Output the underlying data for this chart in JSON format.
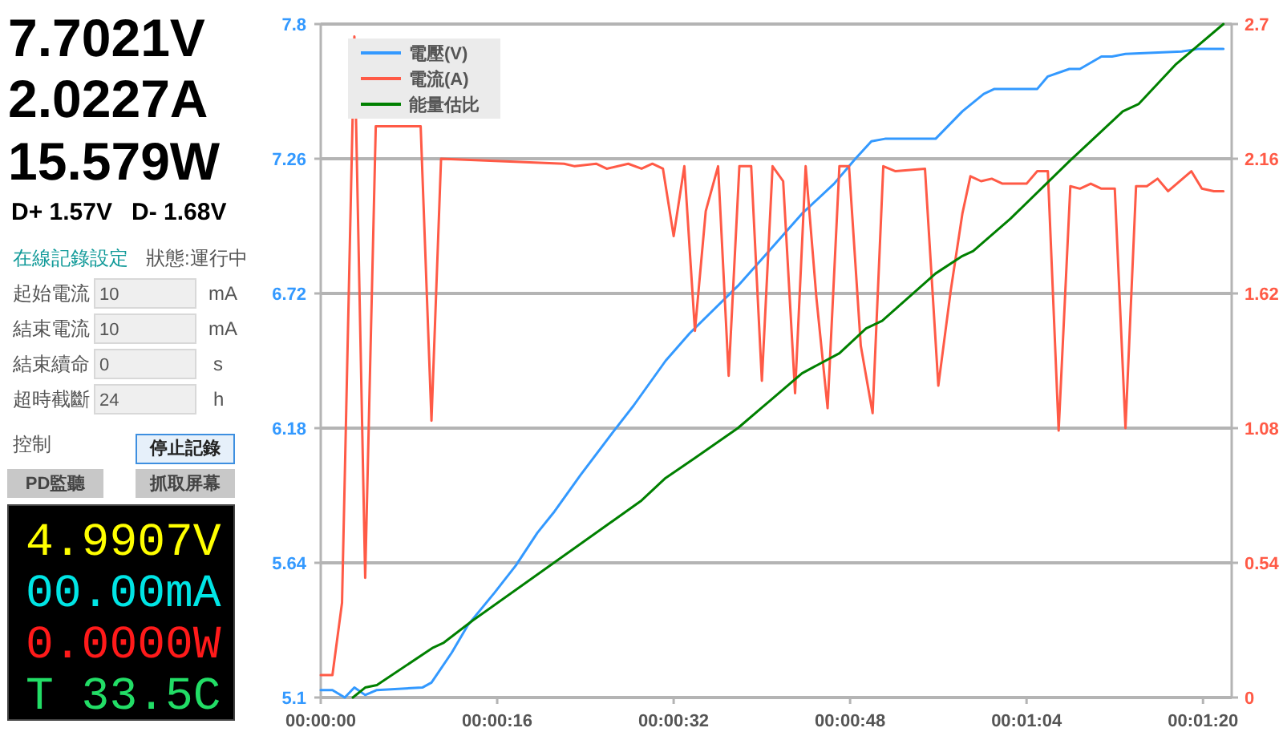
{
  "chart_data": [
    {
      "type": "other",
      "annotations": [
        "7.7021V",
        "2.0227A",
        "15.579W",
        "D+ 1.57V",
        "D- 1.68V",
        "在線記錄設定",
        "狀態:運行中",
        "起始電流",
        "10",
        "mA",
        "結束電流",
        "10",
        "mA",
        "結束續命",
        "0",
        "s",
        "超時截斷",
        "24",
        "h",
        "控制",
        "停止記錄",
        "PD監聽",
        "抓取屏幕",
        "4.9907V",
        "00.00mA",
        "0.0000W",
        "T 33.5C"
      ]
    },
    {
      "type": "line",
      "legend": "top left",
      "grid": "y",
      "xlim": [
        0,
        82.6
      ],
      "xticks": [
        {
          "value": 0,
          "label": "00:00:00"
        },
        {
          "value": 16,
          "label": "00:00:16"
        },
        {
          "value": 32,
          "label": "00:00:32"
        },
        {
          "value": 48,
          "label": "00:00:48"
        },
        {
          "value": 64,
          "label": "00:01:04"
        },
        {
          "value": 80,
          "label": "00:01:20"
        }
      ],
      "ylim": [
        5.1,
        7.8
      ],
      "yticks": [
        5.1,
        5.64,
        6.18,
        6.72,
        7.26,
        7.8
      ],
      "y2lim": [
        0,
        2.7
      ],
      "y2ticks": [
        0,
        0.54,
        1.08,
        1.62,
        2.16,
        2.7
      ],
      "series": [
        {
          "name": "電壓(V)",
          "color": "#3399ff",
          "x": [
            0,
            1.06,
            2.18,
            3.05,
            4.03,
            5.09,
            9.21,
            10.04,
            11.88,
            13.34,
            15.75,
            17.7,
            19.64,
            21.09,
            23.52,
            26.43,
            28.36,
            31.27,
            33.45,
            37.82,
            40.25,
            43.64,
            46.55,
            48.48,
            49.93,
            51.16,
            55.75,
            58.18,
            60.12,
            61.09,
            64.97,
            65.93,
            67.88,
            68.84,
            70.79,
            71.75,
            72.97,
            78.07,
            79.52,
            81.85
          ],
          "values": [
            5.13,
            5.13,
            5.1,
            5.14,
            5.11,
            5.13,
            5.14,
            5.16,
            5.28,
            5.39,
            5.52,
            5.63,
            5.76,
            5.84,
            5.99,
            6.16,
            6.27,
            6.45,
            6.56,
            6.75,
            6.87,
            7.04,
            7.16,
            7.26,
            7.33,
            7.34,
            7.34,
            7.45,
            7.52,
            7.54,
            7.54,
            7.59,
            7.62,
            7.62,
            7.67,
            7.67,
            7.68,
            7.69,
            7.7,
            7.7
          ]
        },
        {
          "name": "電流(A)",
          "color": "#ff5a46",
          "axis": "y2",
          "x": [
            0,
            1.06,
            1.93,
            3.05,
            4.03,
            4.99,
            9.06,
            10.04,
            10.91,
            22.07,
            23.03,
            24.97,
            25.93,
            27.88,
            29.09,
            30.07,
            31.03,
            32.0,
            32.97,
            33.93,
            34.91,
            36.03,
            36.99,
            37.96,
            39.03,
            40.0,
            40.97,
            41.93,
            43.01,
            43.97,
            44.95,
            45.96,
            47.03,
            47.9,
            48.97,
            50.04,
            51.01,
            52.12,
            54.79,
            56.0,
            57.12,
            58.18,
            58.91,
            59.88,
            60.84,
            61.82,
            64.0,
            64.97,
            65.93,
            66.91,
            67.97,
            68.84,
            69.82,
            70.79,
            72.0,
            72.97,
            73.93,
            74.91,
            75.88,
            76.84,
            78.94,
            79.9,
            80.98,
            81.85
          ],
          "values": [
            0.09,
            0.09,
            0.38,
            2.65,
            0.48,
            2.29,
            2.29,
            1.11,
            2.16,
            2.14,
            2.13,
            2.14,
            2.12,
            2.14,
            2.12,
            2.14,
            2.12,
            1.85,
            2.13,
            1.47,
            1.95,
            2.13,
            1.29,
            2.13,
            2.13,
            1.27,
            2.13,
            2.07,
            1.22,
            2.13,
            1.6,
            1.16,
            2.13,
            2.13,
            1.41,
            1.14,
            2.13,
            2.11,
            2.12,
            1.25,
            1.63,
            1.94,
            2.09,
            2.07,
            2.08,
            2.06,
            2.06,
            2.11,
            2.11,
            1.07,
            2.05,
            2.04,
            2.06,
            2.04,
            2.04,
            1.08,
            2.05,
            2.05,
            2.08,
            2.03,
            2.11,
            2.04,
            2.03,
            2.03
          ]
        },
        {
          "name": "能量估比",
          "color": "#008000",
          "axis": "y2",
          "x": [
            2.91,
            4.03,
            5.09,
            10.18,
            11.16,
            13.82,
            29.09,
            31.27,
            33.93,
            37.82,
            40.73,
            43.64,
            47.03,
            49.45,
            50.91,
            55.75,
            58.18,
            59.16,
            62.55,
            67.88,
            72.73,
            74.18,
            77.57,
            81.85
          ],
          "values": [
            0,
            0.04,
            0.05,
            0.2,
            0.22,
            0.31,
            0.79,
            0.88,
            0.96,
            1.08,
            1.19,
            1.3,
            1.38,
            1.48,
            1.51,
            1.7,
            1.77,
            1.79,
            1.92,
            2.15,
            2.35,
            2.38,
            2.54,
            2.7
          ]
        }
      ]
    }
  ]
}
